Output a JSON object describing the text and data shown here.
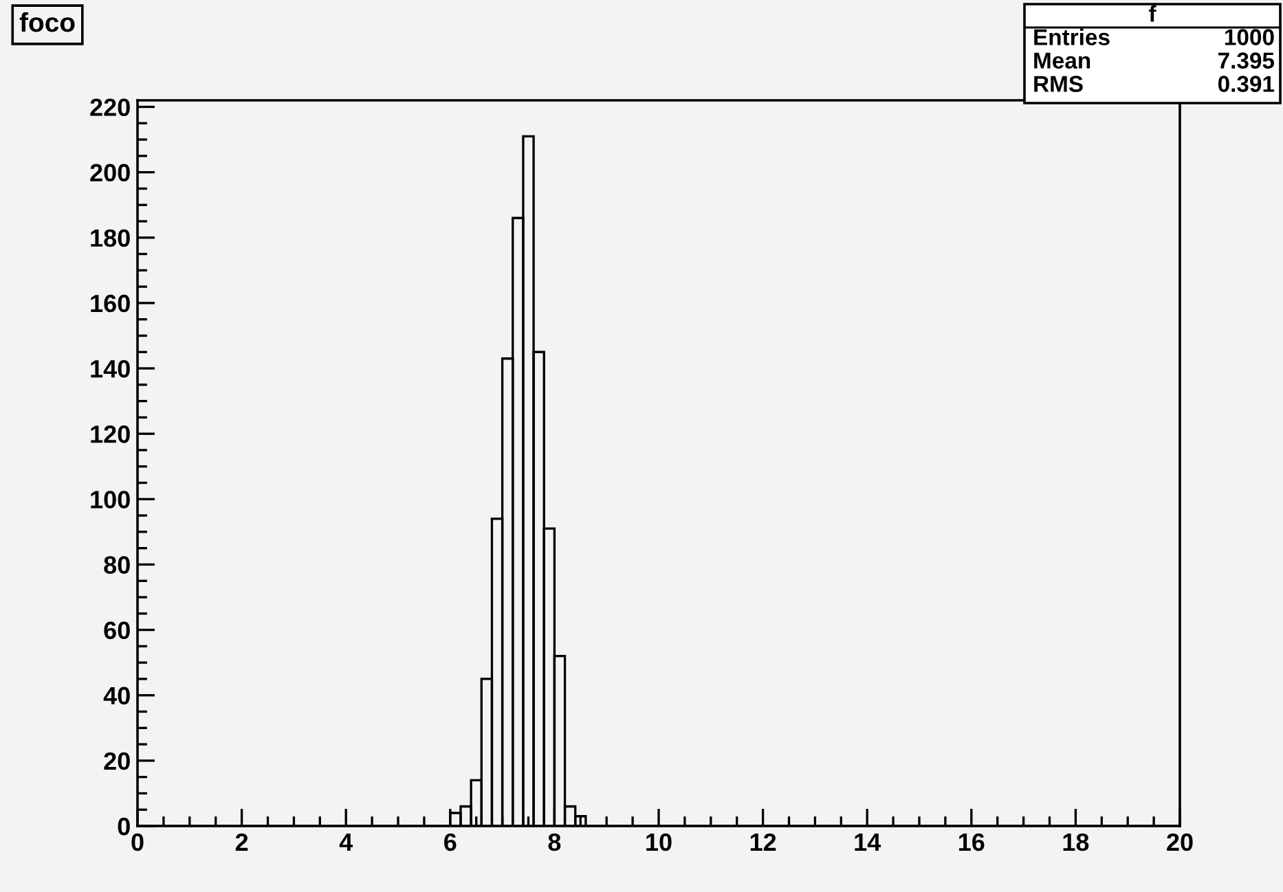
{
  "chart_data": {
    "type": "histogram",
    "title": "foco",
    "bins": [
      0,
      0.2,
      0.4,
      0.6,
      0.8,
      1,
      1.2,
      1.4,
      1.6,
      1.8,
      2,
      2.2,
      2.4,
      2.6,
      2.8,
      3,
      3.2,
      3.4,
      3.6,
      3.8,
      4,
      4.2,
      4.4,
      4.6,
      4.8,
      5,
      5.2,
      5.4,
      5.6,
      5.8,
      6,
      6.2,
      6.4,
      6.6,
      6.8,
      7,
      7.2,
      7.4,
      7.6,
      7.8,
      8,
      8.2,
      8.4,
      8.6,
      8.8,
      9,
      9.2,
      9.4,
      9.6,
      9.8,
      10,
      10.2,
      10.4,
      10.6,
      10.8,
      11,
      11.2,
      11.4,
      11.6,
      11.8,
      12,
      12.2,
      12.4,
      12.6,
      12.8,
      13,
      13.2,
      13.4,
      13.6,
      13.8,
      14,
      14.2,
      14.4,
      14.6,
      14.8,
      15,
      15.2,
      15.4,
      15.6,
      15.8,
      16,
      16.2,
      16.4,
      16.6,
      16.8,
      17,
      17.2,
      17.4,
      17.6,
      17.8,
      18,
      18.2,
      18.4,
      18.6,
      18.8,
      19,
      19.2,
      19.4,
      19.6,
      19.8,
      20
    ],
    "values": [
      0,
      0,
      0,
      0,
      0,
      0,
      0,
      0,
      0,
      0,
      0,
      0,
      0,
      0,
      0,
      0,
      0,
      0,
      0,
      0,
      0,
      0,
      0,
      0,
      0,
      0,
      0,
      0,
      0,
      0,
      4,
      6,
      14,
      45,
      94,
      143,
      186,
      211,
      145,
      91,
      52,
      6,
      3,
      0,
      0,
      0,
      0,
      0,
      0,
      0,
      0,
      0,
      0,
      0,
      0,
      0,
      0,
      0,
      0,
      0,
      0,
      0,
      0,
      0,
      0,
      0,
      0,
      0,
      0,
      0,
      0,
      0,
      0,
      0,
      0,
      0,
      0,
      0,
      0,
      0,
      0,
      0,
      0,
      0,
      0,
      0,
      0,
      0,
      0,
      0,
      0,
      0,
      0,
      0,
      0,
      0,
      0,
      0,
      0,
      0
    ],
    "color": "#000000",
    "xlim": [
      0,
      20
    ],
    "xticks": [
      0,
      2,
      4,
      6,
      8,
      10,
      12,
      14,
      16,
      18,
      20
    ],
    "ylim": [
      0,
      222
    ],
    "yticks": [
      0,
      20,
      40,
      60,
      80,
      100,
      120,
      140,
      160,
      180,
      200,
      220
    ],
    "annotations": [
      "f",
      "Entries",
      "1000",
      "Mean",
      "7.395",
      "RMS",
      "0.391"
    ],
    "grid": false,
    "legend": false
  }
}
